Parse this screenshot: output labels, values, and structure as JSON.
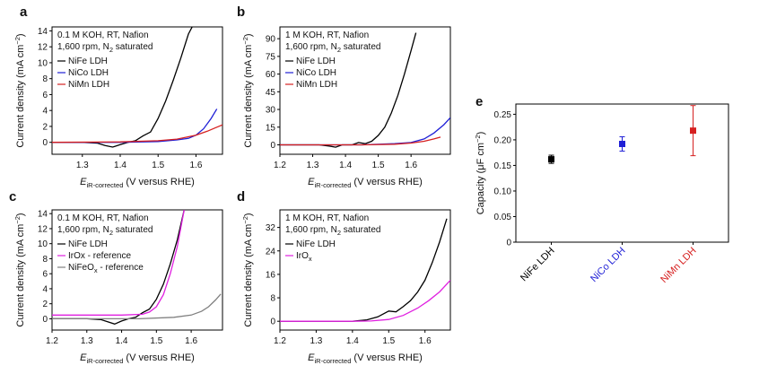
{
  "chart_data": [
    {
      "panel": "a",
      "type": "line",
      "annotation": [
        "0.1 M KOH, RT, Nafion",
        "1,600 rpm, N2 saturated"
      ],
      "xlabel": "E iR-corrected (V versus RHE)",
      "ylabel": "Current density (mA cm−2)",
      "xlim": [
        1.22,
        1.67
      ],
      "ylim": [
        -1.5,
        14.5
      ],
      "xticks": [
        "1.3",
        "1.4",
        "1.5",
        "1.6"
      ],
      "yticks": [
        "0",
        "2",
        "4",
        "6",
        "8",
        "10",
        "12",
        "14"
      ],
      "series": [
        {
          "name": "NiFe LDH",
          "color": "#000000",
          "x": [
            1.22,
            1.3,
            1.34,
            1.36,
            1.38,
            1.4,
            1.42,
            1.44,
            1.46,
            1.48,
            1.5,
            1.52,
            1.54,
            1.56,
            1.58,
            1.59
          ],
          "y": [
            0,
            0,
            -0.1,
            -0.4,
            -0.6,
            -0.3,
            0,
            0.2,
            0.8,
            1.3,
            3.0,
            5.2,
            7.8,
            10.6,
            13.6,
            14.5
          ]
        },
        {
          "name": "NiCo LDH",
          "color": "#1f1fd6",
          "x": [
            1.22,
            1.4,
            1.5,
            1.55,
            1.58,
            1.6,
            1.62,
            1.64,
            1.655
          ],
          "y": [
            0,
            0,
            0.1,
            0.3,
            0.5,
            0.9,
            1.7,
            3.0,
            4.2
          ]
        },
        {
          "name": "NiMn LDH",
          "color": "#d62020",
          "x": [
            1.22,
            1.4,
            1.5,
            1.55,
            1.6,
            1.63,
            1.65,
            1.67
          ],
          "y": [
            0,
            0.05,
            0.2,
            0.4,
            0.9,
            1.4,
            1.8,
            2.2
          ]
        }
      ]
    },
    {
      "panel": "b",
      "type": "line",
      "annotation": [
        "1 M KOH, RT, Nafion",
        "1,600 rpm, N2 saturated"
      ],
      "xlabel": "E iR-corrected (V versus RHE)",
      "ylabel": "Current density (mA cm−2)",
      "xlim": [
        1.2,
        1.72
      ],
      "ylim": [
        -8,
        100
      ],
      "xticks": [
        "1.2",
        "1.3",
        "1.4",
        "1.5",
        "1.6"
      ],
      "yticks": [
        "0",
        "15",
        "30",
        "45",
        "60",
        "75",
        "90"
      ],
      "series": [
        {
          "name": "NiFe LDH",
          "color": "#000000",
          "x": [
            1.2,
            1.32,
            1.35,
            1.37,
            1.39,
            1.42,
            1.44,
            1.46,
            1.48,
            1.5,
            1.52,
            1.54,
            1.56,
            1.58,
            1.6,
            1.615
          ],
          "y": [
            0,
            0,
            -1,
            -2,
            0,
            0,
            2,
            1,
            3,
            8,
            15,
            27,
            42,
            60,
            80,
            95
          ]
        },
        {
          "name": "NiCo LDH",
          "color": "#1f1fd6",
          "x": [
            1.2,
            1.45,
            1.55,
            1.6,
            1.64,
            1.67,
            1.7,
            1.72
          ],
          "y": [
            0,
            0,
            1,
            2,
            5,
            10,
            17,
            23
          ]
        },
        {
          "name": "NiMn LDH",
          "color": "#d62020",
          "x": [
            1.2,
            1.45,
            1.55,
            1.6,
            1.64,
            1.67,
            1.69
          ],
          "y": [
            0,
            0,
            0.5,
            1.5,
            3,
            5,
            6.5
          ]
        }
      ]
    },
    {
      "panel": "c",
      "type": "line",
      "annotation": [
        "0.1 M KOH, RT, Nafion",
        "1,600 rpm, N2 saturated"
      ],
      "xlabel": "E iR-corrected (V versus RHE)",
      "ylabel": "Current density (mA cm−2)",
      "xlim": [
        1.2,
        1.69
      ],
      "ylim": [
        -1.5,
        14.5
      ],
      "xticks": [
        "1.2",
        "1.3",
        "1.4",
        "1.5",
        "1.6"
      ],
      "yticks": [
        "0",
        "2",
        "4",
        "6",
        "8",
        "10",
        "12",
        "14"
      ],
      "series": [
        {
          "name": "NiFe LDH",
          "color": "#000000",
          "x": [
            1.2,
            1.3,
            1.34,
            1.36,
            1.38,
            1.4,
            1.42,
            1.44,
            1.46,
            1.48,
            1.5,
            1.52,
            1.54,
            1.56,
            1.58
          ],
          "y": [
            0,
            0,
            -0.1,
            -0.4,
            -0.7,
            -0.3,
            0,
            0.2,
            0.8,
            1.3,
            2.6,
            4.6,
            7.3,
            10.5,
            14.5
          ]
        },
        {
          "name": "IrOx - reference",
          "color": "#e020e0",
          "x": [
            1.2,
            1.4,
            1.46,
            1.48,
            1.5,
            1.52,
            1.54,
            1.56,
            1.58
          ],
          "y": [
            0.5,
            0.5,
            0.6,
            0.9,
            1.6,
            3.2,
            6.0,
            9.6,
            14.5
          ]
        },
        {
          "name": "NiFeOx - reference",
          "color": "#808080",
          "x": [
            1.2,
            1.45,
            1.55,
            1.6,
            1.63,
            1.65,
            1.67,
            1.685
          ],
          "y": [
            0,
            0,
            0.2,
            0.5,
            1.0,
            1.6,
            2.5,
            3.3
          ]
        }
      ]
    },
    {
      "panel": "d",
      "type": "line",
      "annotation": [
        "1 M KOH, RT, Nafion",
        "1,600 rpm, N2 saturated"
      ],
      "xlabel": "E iR-corrected (V versus RHE)",
      "ylabel": "Current density (mA cm−2)",
      "xlim": [
        1.2,
        1.67
      ],
      "ylim": [
        -3,
        38
      ],
      "xticks": [
        "1.2",
        "1.3",
        "1.4",
        "1.5",
        "1.6"
      ],
      "yticks": [
        "0",
        "8",
        "16",
        "24",
        "32"
      ],
      "series": [
        {
          "name": "NiFe LDH",
          "color": "#000000",
          "x": [
            1.2,
            1.4,
            1.44,
            1.47,
            1.5,
            1.52,
            1.54,
            1.56,
            1.58,
            1.6,
            1.62,
            1.64,
            1.66
          ],
          "y": [
            0,
            0,
            0.5,
            1.5,
            3.5,
            3.2,
            5,
            7,
            10,
            14,
            20,
            27,
            35
          ]
        },
        {
          "name": "IrOx",
          "color": "#e020e0",
          "x": [
            1.2,
            1.4,
            1.45,
            1.5,
            1.54,
            1.58,
            1.61,
            1.64,
            1.67
          ],
          "y": [
            0,
            0,
            0.1,
            0.6,
            2,
            4.5,
            7,
            10,
            14
          ]
        }
      ]
    },
    {
      "panel": "e",
      "type": "scatter",
      "ylabel": "Capacity (μF cm−2)",
      "ylim": [
        0,
        0.27
      ],
      "yticks": [
        "0",
        "0.05",
        "0.10",
        "0.15",
        "0.20",
        "0.25"
      ],
      "categories": [
        "NiFe LDH",
        "NiCo LDH",
        "NiMn LDH"
      ],
      "values": [
        0.162,
        0.192,
        0.218
      ],
      "errors": [
        0.008,
        0.014,
        0.049
      ],
      "colors": [
        "#000000",
        "#1f1fd6",
        "#d62020"
      ]
    }
  ]
}
